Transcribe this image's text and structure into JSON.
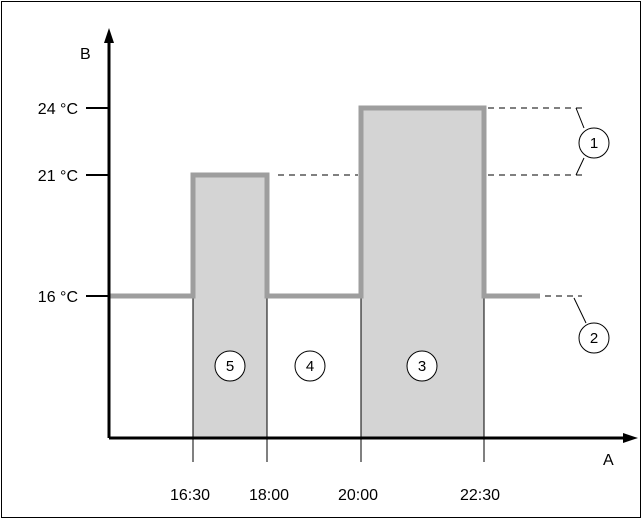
{
  "axes": {
    "y_label": "B",
    "x_label": "A",
    "y_ticks": [
      "24 °C",
      "21 °C",
      "16 °C"
    ],
    "x_ticks": [
      "16:30",
      "18:00",
      "20:00",
      "22:30"
    ]
  },
  "callouts": [
    "1",
    "2",
    "3",
    "4",
    "5"
  ],
  "chart_data": {
    "type": "step",
    "x": [
      "start",
      "16:30",
      "18:00",
      "20:00",
      "22:30",
      "end"
    ],
    "temperature_c": [
      16,
      21,
      16,
      24,
      16
    ],
    "setpoints_c": [
      24,
      21,
      16
    ],
    "shaded_periods": [
      [
        "16:30",
        "18:00"
      ],
      [
        "20:00",
        "22:30"
      ]
    ],
    "colors": {
      "line": "#9e9e9e",
      "shade": "#d4d4d4",
      "axis": "#000000"
    }
  }
}
